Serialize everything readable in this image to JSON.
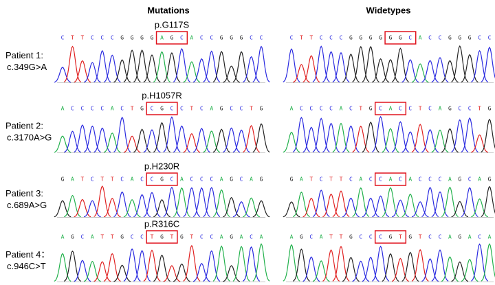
{
  "header": {
    "left": "Mutations",
    "right": "Widetypes"
  },
  "rows": [
    {
      "patient": "Patient 1:",
      "change": "c.349G>A",
      "protein": "p.G117S",
      "mutant": {
        "before": [
          "C",
          "T",
          "T",
          "C",
          "C",
          "C",
          "G",
          "G",
          "G",
          "G"
        ],
        "codon": [
          "A",
          "G",
          "C"
        ],
        "after": [
          "A",
          "C",
          "C",
          "G",
          "G",
          "G",
          "C",
          "C"
        ]
      },
      "wildtype": {
        "before": [
          "C",
          "T",
          "T",
          "C",
          "C",
          "C",
          "G",
          "G",
          "G",
          "G"
        ],
        "codon": [
          "G",
          "G",
          "C"
        ],
        "after": [
          "A",
          "C",
          "C",
          "G",
          "G",
          "G",
          "C",
          "C"
        ]
      }
    },
    {
      "patient": "Patient 2:",
      "change": "c.3170A>G",
      "protein": "p.H1057R",
      "mutant": {
        "before": [
          "A",
          "C",
          "C",
          "C",
          "C",
          "A",
          "C",
          "T",
          "G"
        ],
        "codon": [
          "C",
          "G",
          "C"
        ],
        "after": [
          "C",
          "T",
          "C",
          "A",
          "G",
          "C",
          "C",
          "T",
          "G"
        ]
      },
      "wildtype": {
        "before": [
          "A",
          "C",
          "C",
          "C",
          "C",
          "A",
          "C",
          "T",
          "G"
        ],
        "codon": [
          "C",
          "A",
          "C"
        ],
        "after": [
          "C",
          "T",
          "C",
          "A",
          "G",
          "C",
          "C",
          "T",
          "G"
        ]
      }
    },
    {
      "patient": "Patient 3:",
      "change": "c.689A>G",
      "protein": "p.H230R",
      "mutant": {
        "before": [
          "G",
          "A",
          "T",
          "C",
          "T",
          "T",
          "C",
          "A",
          "C"
        ],
        "codon": [
          "C",
          "G",
          "C"
        ],
        "after": [
          "A",
          "C",
          "C",
          "C",
          "A",
          "G",
          "C",
          "A",
          "G"
        ]
      },
      "wildtype": {
        "before": [
          "G",
          "A",
          "T",
          "C",
          "T",
          "T",
          "C",
          "A",
          "C"
        ],
        "codon": [
          "C",
          "A",
          "C"
        ],
        "after": [
          "A",
          "C",
          "C",
          "C",
          "A",
          "G",
          "C",
          "A",
          "G"
        ]
      }
    },
    {
      "patient": "Patient 4：",
      "change": "c.946C>T",
      "protein": "p.R316C",
      "mutant": {
        "before": [
          "A",
          "G",
          "C",
          "A",
          "T",
          "T",
          "G",
          "C",
          "C"
        ],
        "codon": [
          "T",
          "G",
          "T"
        ],
        "after": [
          "G",
          "T",
          "C",
          "C",
          "A",
          "G",
          "A",
          "C",
          "A"
        ]
      },
      "wildtype": {
        "before": [
          "A",
          "G",
          "C",
          "A",
          "T",
          "T",
          "G",
          "C",
          "C"
        ],
        "codon": [
          "C",
          "G",
          "T"
        ],
        "after": [
          "G",
          "T",
          "C",
          "C",
          "A",
          "G",
          "A",
          "C",
          "A"
        ]
      }
    }
  ]
}
